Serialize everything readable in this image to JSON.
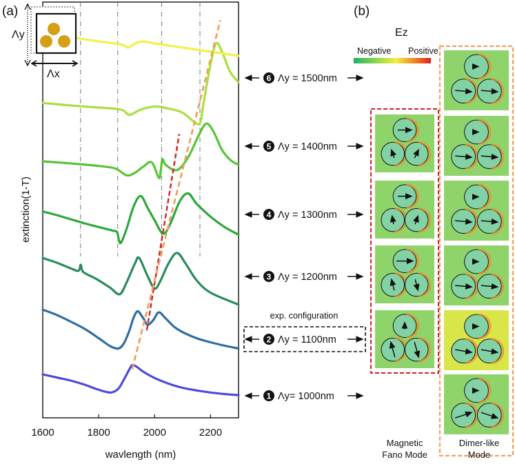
{
  "chart_data": {
    "type": "line",
    "title": "",
    "panel_a_label": "(a)",
    "panel_b_label": "(b)",
    "xlabel": "wavlength (nm)",
    "ylabel": "extinction(1-T)",
    "xlim": [
      1600,
      2300
    ],
    "ylim": [
      0,
      7.4
    ],
    "x_ticks": [
      1600,
      1800,
      2000,
      2200
    ],
    "x_tick_labels": [
      "1600",
      "1800",
      "2000",
      "2200"
    ],
    "inset": {
      "label_y": "Λy",
      "label_x": "Λx",
      "particle_color": "#D4A017"
    },
    "vlines_x": [
      1735,
      1868,
      2025,
      2162
    ],
    "series": [
      {
        "name": "Λy = 1000nm",
        "index": "1",
        "color": "#4B4BDB",
        "x": [
          1600,
          1650,
          1700,
          1750,
          1790,
          1820,
          1845,
          1870,
          1890,
          1910,
          1920,
          1935,
          1960,
          2000,
          2050,
          2100,
          2150,
          2200,
          2250,
          2300
        ],
        "values": [
          0.7,
          0.64,
          0.58,
          0.5,
          0.42,
          0.37,
          0.35,
          0.42,
          0.6,
          0.8,
          0.88,
          0.85,
          0.75,
          0.63,
          0.52,
          0.44,
          0.39,
          0.35,
          0.32,
          0.3
        ]
      },
      {
        "name": "Λy = 1100nm",
        "index": "2",
        "color": "#2E6E9E",
        "x": [
          1600,
          1650,
          1700,
          1750,
          1800,
          1840,
          1870,
          1890,
          1910,
          1925,
          1940,
          1960,
          1975,
          1995,
          2015,
          2040,
          2080,
          2150,
          2230,
          2300
        ],
        "values": [
          1.95,
          1.85,
          1.72,
          1.58,
          1.4,
          1.25,
          1.2,
          1.3,
          1.55,
          1.8,
          1.92,
          1.78,
          1.66,
          1.75,
          1.9,
          1.78,
          1.58,
          1.4,
          1.28,
          1.2
        ]
      },
      {
        "name": "Λy = 1200nm",
        "index": "3",
        "color": "#2A8A5A",
        "x": [
          1600,
          1650,
          1700,
          1725,
          1732,
          1736,
          1745,
          1790,
          1840,
          1875,
          1900,
          1930,
          1945,
          1975,
          2000,
          2020,
          2050,
          2080,
          2110,
          2150,
          2200,
          2300
        ],
        "values": [
          2.95,
          2.86,
          2.75,
          2.7,
          2.74,
          2.82,
          2.68,
          2.55,
          2.38,
          2.25,
          2.48,
          2.85,
          2.95,
          2.6,
          2.36,
          2.5,
          2.85,
          3.05,
          2.85,
          2.52,
          2.28,
          2.05
        ]
      },
      {
        "name": "Λy = 1300nm",
        "index": "4",
        "color": "#2BA83A",
        "x": [
          1600,
          1650,
          1700,
          1750,
          1800,
          1850,
          1866,
          1872,
          1880,
          1900,
          1925,
          1950,
          1975,
          2000,
          2030,
          2055,
          2090,
          2120,
          2150,
          2200,
          2250,
          2300
        ],
        "values": [
          3.85,
          3.78,
          3.7,
          3.62,
          3.55,
          3.48,
          3.45,
          3.3,
          3.25,
          3.52,
          3.95,
          4.15,
          3.92,
          3.68,
          3.42,
          3.6,
          4.05,
          4.2,
          4.0,
          3.75,
          3.55,
          3.4
        ]
      },
      {
        "name": "Λy = 1400nm",
        "index": "5",
        "color": "#57C437",
        "x": [
          1600,
          1700,
          1800,
          1860,
          1900,
          1930,
          1960,
          1990,
          2015,
          2022,
          2028,
          2040,
          2080,
          2120,
          2160,
          2185,
          2210,
          2240,
          2270,
          2300
        ],
        "values": [
          4.82,
          4.78,
          4.73,
          4.68,
          4.55,
          4.6,
          4.72,
          4.8,
          4.5,
          4.65,
          4.86,
          4.75,
          4.65,
          4.9,
          5.35,
          5.55,
          5.4,
          5.05,
          4.85,
          4.75
        ]
      },
      {
        "name": "Λy = 1500nm",
        "index": "6",
        "color": "#A8E03C",
        "x": [
          1600,
          1700,
          1800,
          1880,
          1910,
          1950,
          2000,
          2050,
          2100,
          2150,
          2165,
          2175,
          2200,
          2220,
          2240,
          2270,
          2300
        ],
        "values": [
          5.95,
          5.9,
          5.86,
          5.82,
          5.72,
          5.82,
          5.88,
          5.84,
          5.76,
          5.55,
          5.6,
          5.95,
          6.7,
          7.1,
          6.95,
          6.55,
          6.35
        ]
      },
      {
        "name": "top",
        "index": "",
        "color": "#F1F24A",
        "x": [
          1600,
          1700,
          1800,
          1880,
          1905,
          1930,
          1960,
          2000,
          2100,
          2200,
          2300
        ],
        "values": [
          7.3,
          7.22,
          7.14,
          7.08,
          7.02,
          7.1,
          7.14,
          7.1,
          7.02,
          6.94,
          6.86
        ]
      }
    ],
    "trend_lines": [
      {
        "name": "red-dashed",
        "color": "#D42020",
        "x": [
          1972,
          2088
        ],
        "values": [
          1.55,
          5.35
        ]
      },
      {
        "name": "orange-dashed",
        "color": "#F0A060",
        "x": [
          1920,
          2235
        ],
        "values": [
          0.8,
          7.55
        ]
      }
    ]
  },
  "row_labels": [
    {
      "index": "6",
      "text": "Λy = 1500nm"
    },
    {
      "index": "5",
      "text": "Λy = 1400nm"
    },
    {
      "index": "4",
      "text": "Λy = 1300nm"
    },
    {
      "index": "3",
      "text": "Λy = 1200nm"
    },
    {
      "index": "2",
      "text": "Λy = 1100nm"
    },
    {
      "index": "1",
      "text": "Λy= 1000nm"
    }
  ],
  "exp_label": "exp. configuration",
  "colorbar": {
    "title": "Ez",
    "negative": "Negative",
    "positive": "Positive"
  },
  "modes": {
    "fano_label_1": "Magnetic",
    "fano_label_2": "Fano Mode",
    "dimer_label_1": "Dimer-like",
    "dimer_label_2": "Mode",
    "fano_color": "#D42020",
    "dimer_color": "#F0A060"
  }
}
